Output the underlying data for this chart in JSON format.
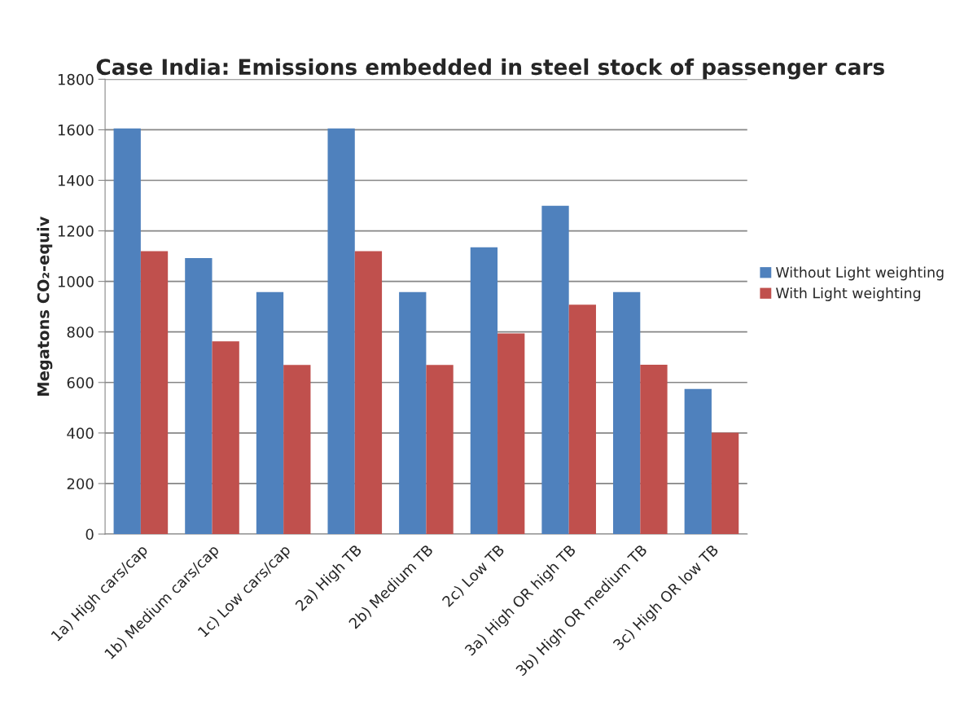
{
  "chart_data": {
    "type": "bar",
    "title": "Case India: Emissions embedded in steel stock of passenger cars",
    "ylabel": "Megatons CO₂-equiv",
    "categories": [
      "1a) High cars/cap",
      "1b) Medium cars/cap",
      "1c) Low cars/cap",
      "2a) High TB",
      "2b) Medium TB",
      "2c) Low TB",
      "3a) High OR high TB",
      "3b) High OR medium TB",
      "3c) High OR low TB"
    ],
    "series": [
      {
        "name": "Without Light weighting",
        "color": "#4f81bd",
        "values": [
          1605,
          1092,
          958,
          1605,
          958,
          1135,
          1299,
          958,
          574
        ]
      },
      {
        "name": "With Light weighting",
        "color": "#c0504d",
        "values": [
          1120,
          763,
          669,
          1120,
          669,
          794,
          908,
          670,
          401
        ]
      }
    ],
    "ylim": [
      0,
      1800
    ],
    "yticks": [
      0,
      200,
      400,
      600,
      800,
      1000,
      1200,
      1400,
      1600,
      1800
    ],
    "grid": "y",
    "legend": "right"
  }
}
